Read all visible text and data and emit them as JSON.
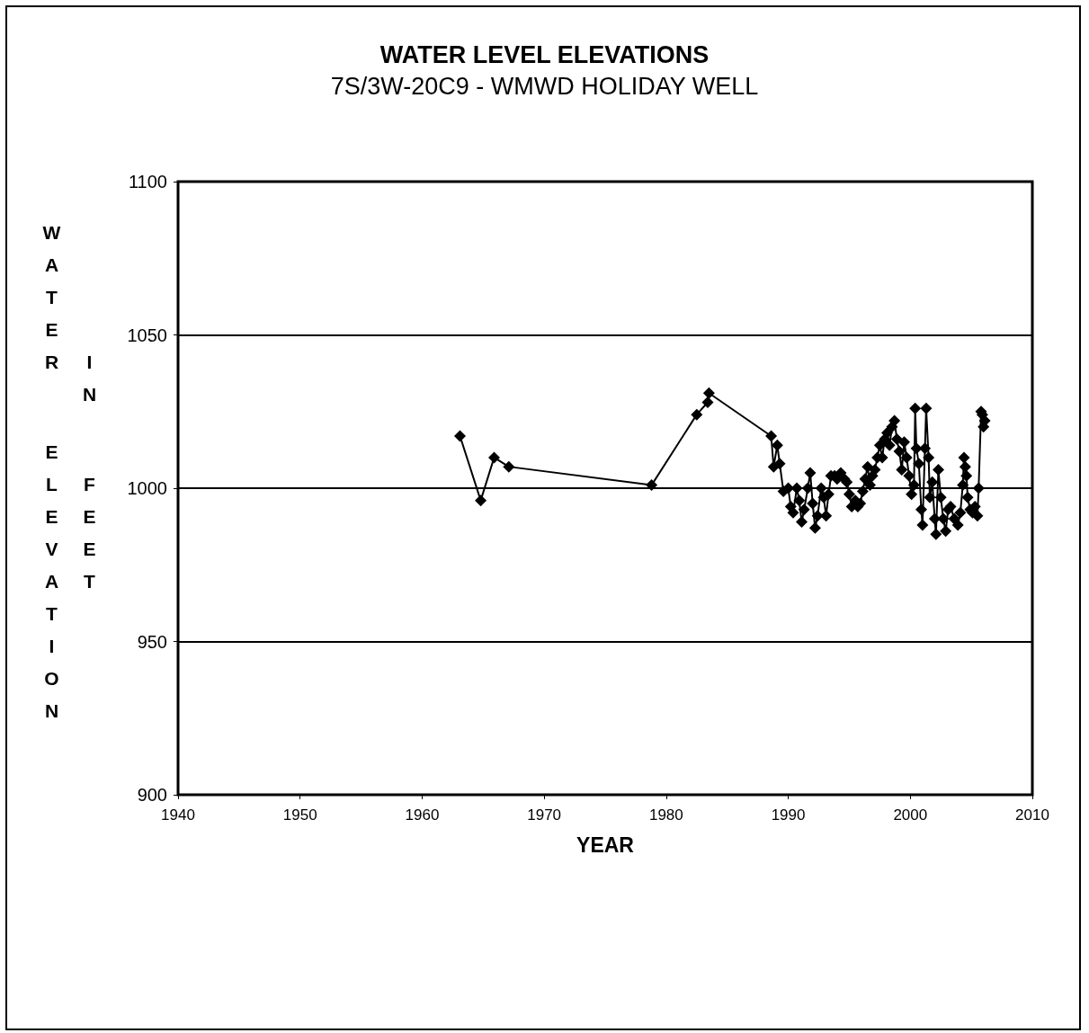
{
  "chart_data": {
    "type": "line",
    "title": "WATER LEVEL ELEVATIONS",
    "subtitle": "7S/3W-20C9 - WMWD HOLIDAY WELL",
    "xlabel": "YEAR",
    "ylabel": "WATER ELEVATION IN FEET",
    "xlim": [
      1940,
      2010
    ],
    "xticks": [
      1940,
      1950,
      1960,
      1970,
      1980,
      1990,
      2000,
      2010
    ],
    "ylim": [
      900,
      1100
    ],
    "yticks": [
      900,
      950,
      1000,
      1050,
      1100
    ],
    "grid": "y",
    "marker": "diamond",
    "line_style": "solid",
    "series": [
      {
        "color": "#000000",
        "x": [
          1963.1,
          1964.8,
          1965.9,
          1967.1,
          1978.8,
          1982.5,
          1983.4,
          1983.5,
          1988.6,
          1988.8,
          1989.1,
          1989.3,
          1989.6,
          1990.0,
          1990.2,
          1990.4,
          1990.7,
          1990.9,
          1991.1,
          1991.3,
          1991.6,
          1991.8,
          1992.0,
          1992.2,
          1992.4,
          1992.7,
          1992.9,
          1993.1,
          1993.3,
          1993.5,
          1993.8,
          1994.0,
          1994.3,
          1994.6,
          1994.8,
          1995.0,
          1995.2,
          1995.5,
          1995.7,
          1995.9,
          1996.1,
          1996.3,
          1996.5,
          1996.7,
          1996.9,
          1997.1,
          1997.3,
          1997.5,
          1997.7,
          1997.9,
          1998.1,
          1998.3,
          1998.5,
          1998.7,
          1998.9,
          1999.1,
          1999.3,
          1999.5,
          1999.7,
          1999.9,
          2000.1,
          2000.3,
          2000.4,
          2000.5,
          2000.7,
          2000.9,
          2001.0,
          2001.2,
          2001.3,
          2001.5,
          2001.6,
          2001.8,
          2002.0,
          2002.1,
          2002.3,
          2002.5,
          2002.7,
          2002.9,
          2003.1,
          2003.3,
          2003.6,
          2003.9,
          2004.1,
          2004.3,
          2004.4,
          2004.5,
          2004.6,
          2004.7,
          2004.9,
          2005.1,
          2005.3,
          2005.5,
          2005.6,
          2005.8,
          2005.9,
          2006.0,
          2006.1
        ],
        "values": [
          1017,
          996,
          1010,
          1007,
          1001,
          1024,
          1028,
          1031,
          1017,
          1007,
          1014,
          1008,
          999,
          1000,
          994,
          992,
          1000,
          996,
          989,
          993,
          1000,
          1005,
          995,
          987,
          991,
          1000,
          997,
          991,
          998,
          1004,
          1004,
          1003,
          1005,
          1003,
          1002,
          998,
          994,
          996,
          994,
          995,
          999,
          1003,
          1007,
          1001,
          1004,
          1006,
          1010,
          1014,
          1010,
          1016,
          1018,
          1014,
          1020,
          1022,
          1016,
          1012,
          1006,
          1015,
          1010,
          1004,
          998,
          1001,
          1026,
          1013,
          1008,
          993,
          988,
          1013,
          1026,
          1010,
          997,
          1002,
          990,
          985,
          1006,
          997,
          990,
          986,
          993,
          994,
          990,
          988,
          992,
          1001,
          1010,
          1007,
          1004,
          997,
          993,
          992,
          994,
          991,
          1000,
          1025,
          1024,
          1020,
          1022
        ]
      }
    ]
  }
}
